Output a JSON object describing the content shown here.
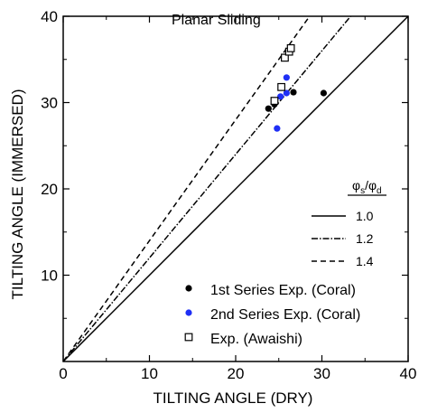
{
  "chart_data": {
    "type": "scatter",
    "title": "Planar Sliding",
    "xlabel": "TILTING ANGLE (DRY)",
    "ylabel": "TILTING ANGLE (IMMERSED)",
    "xlim": [
      0,
      40
    ],
    "ylim": [
      0,
      40
    ],
    "xticks": [
      "0",
      "10",
      "20",
      "30",
      "40"
    ],
    "yticks": [
      "10",
      "20",
      "30",
      "40"
    ],
    "grid": false,
    "lines_legend_title": "φs/φd",
    "lines": [
      {
        "name": "1.0",
        "slope": 1.0,
        "style": "solid"
      },
      {
        "name": "1.2",
        "slope": 1.2,
        "style": "dashdot"
      },
      {
        "name": "1.4",
        "slope": 1.4,
        "style": "dashed"
      }
    ],
    "series": [
      {
        "name": "1st Series Exp. (Coral)",
        "marker": "filled-circle",
        "color": "#000000",
        "points": [
          [
            23.8,
            29.3
          ],
          [
            24.5,
            29.8
          ],
          [
            26.7,
            31.2
          ],
          [
            30.2,
            31.1
          ]
        ]
      },
      {
        "name": "2nd Series Exp. (Coral)",
        "marker": "filled-circle",
        "color": "#1f2ff5",
        "points": [
          [
            24.8,
            27.0
          ],
          [
            25.2,
            30.7
          ],
          [
            25.9,
            31.1
          ],
          [
            25.9,
            32.9
          ]
        ]
      },
      {
        "name": "Exp. (Awaishi)",
        "marker": "open-square",
        "color": "#000000",
        "points": [
          [
            24.5,
            30.2
          ],
          [
            25.3,
            31.8
          ],
          [
            25.7,
            35.2
          ],
          [
            26.2,
            35.9
          ],
          [
            26.4,
            36.3
          ]
        ]
      }
    ]
  }
}
